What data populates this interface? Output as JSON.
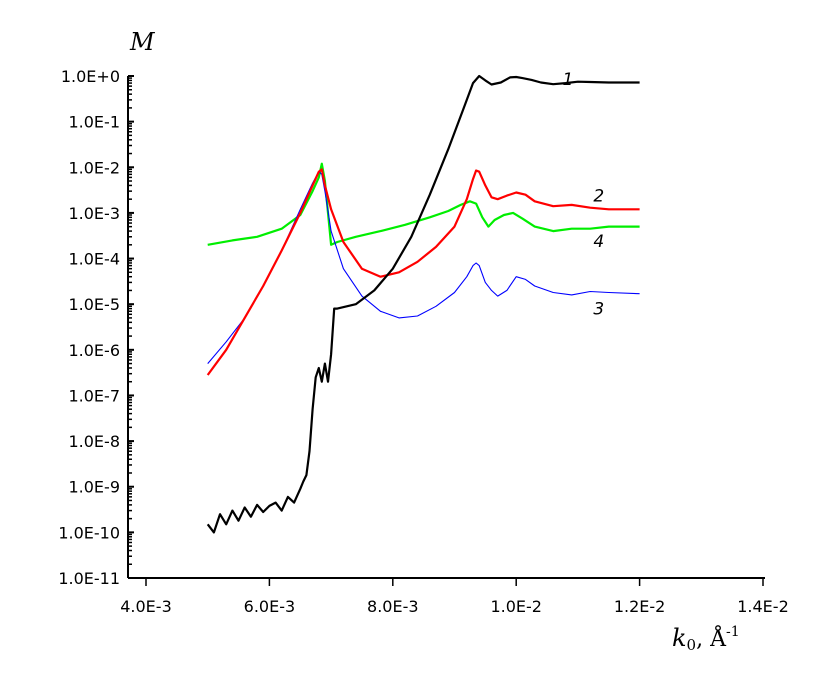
{
  "chart_data": {
    "type": "line",
    "title": "",
    "xlabel": "k0, Å-1",
    "xlabel_main": "k",
    "xlabel_sub": "0",
    "xlabel_unit": ", Å",
    "xlabel_sup": "-1",
    "ylabel": "M",
    "y_scale": "log",
    "xlim": [
      0.004,
      0.014
    ],
    "ylim": [
      1e-11,
      1
    ],
    "grid": false,
    "x_ticks": [
      0.004,
      0.006,
      0.008,
      0.01,
      0.012,
      0.014
    ],
    "x_tick_labels": [
      "4.0E-3",
      "6.0E-3",
      "8.0E-3",
      "1.0E-2",
      "1.2E-2",
      "1.4E-2"
    ],
    "y_ticks": [
      1,
      0.1,
      0.01,
      0.001,
      0.0001,
      1e-05,
      1e-06,
      1e-07,
      1e-08,
      1e-09,
      1e-10,
      1e-11
    ],
    "y_tick_labels": [
      "1.0E+0",
      "1.0E-1",
      "1.0E-2",
      "1.0E-3",
      "1.0E-4",
      "1.0E-5",
      "1.0E-6",
      "1.0E-7",
      "1.0E-8",
      "1.0E-9",
      "1.0E-10",
      "1.0E-11"
    ],
    "series": [
      {
        "name": "1",
        "color": "#000000",
        "label_at": [
          0.01075,
          0.63
        ],
        "x": [
          0.005,
          0.0051,
          0.0052,
          0.0053,
          0.0054,
          0.0055,
          0.0056,
          0.0057,
          0.0058,
          0.0059,
          0.006,
          0.0061,
          0.0062,
          0.0063,
          0.0064,
          0.0065,
          0.00655,
          0.0066,
          0.00665,
          0.0067,
          0.00675,
          0.0068,
          0.00685,
          0.0069,
          0.00695,
          0.007,
          0.00705,
          0.0071,
          0.0074,
          0.0077,
          0.008,
          0.0083,
          0.0086,
          0.0089,
          0.00915,
          0.0093,
          0.0094,
          0.0095,
          0.0096,
          0.00975,
          0.0099,
          0.01,
          0.0101,
          0.01025,
          0.0104,
          0.0106,
          0.0108,
          0.011,
          0.0112,
          0.0115,
          0.012
        ],
        "y": [
          1.5e-10,
          1e-10,
          2.5e-10,
          1.5e-10,
          3e-10,
          1.8e-10,
          3.5e-10,
          2.2e-10,
          4e-10,
          2.8e-10,
          3.8e-10,
          4.5e-10,
          3e-10,
          6e-10,
          4.5e-10,
          9e-10,
          1.3e-09,
          1.8e-09,
          6e-09,
          5e-08,
          2.5e-07,
          4e-07,
          2e-07,
          5e-07,
          2e-07,
          8e-07,
          8e-06,
          8e-06,
          1e-05,
          2e-05,
          6e-05,
          0.0003,
          0.0025,
          0.025,
          0.2,
          0.7,
          1.0,
          0.8,
          0.65,
          0.72,
          0.93,
          0.95,
          0.9,
          0.82,
          0.72,
          0.66,
          0.7,
          0.75,
          0.74,
          0.72,
          0.72
        ]
      },
      {
        "name": "2",
        "color": "#ff0000",
        "label_at": [
          0.01125,
          0.0018
        ],
        "x": [
          0.005,
          0.0053,
          0.0056,
          0.0059,
          0.0062,
          0.0065,
          0.0067,
          0.0068,
          0.00685,
          0.0069,
          0.007,
          0.0072,
          0.0075,
          0.0078,
          0.0081,
          0.0084,
          0.0087,
          0.009,
          0.0092,
          0.0093,
          0.00935,
          0.0094,
          0.0095,
          0.0096,
          0.0097,
          0.00985,
          0.01,
          0.01015,
          0.0103,
          0.0106,
          0.0109,
          0.0112,
          0.0115,
          0.012
        ],
        "y": [
          2.8e-07,
          1e-06,
          5e-06,
          2.5e-05,
          0.00015,
          0.001,
          0.004,
          0.008,
          0.009,
          0.004,
          0.0012,
          0.00023,
          6e-05,
          4e-05,
          5e-05,
          8.5e-05,
          0.00018,
          0.0005,
          0.002,
          0.0055,
          0.0085,
          0.008,
          0.004,
          0.0022,
          0.002,
          0.0024,
          0.0028,
          0.0025,
          0.0018,
          0.0014,
          0.0015,
          0.0013,
          0.0012,
          0.0012
        ]
      },
      {
        "name": "3",
        "color": "#0000ff",
        "label_at": [
          0.01125,
          6e-06
        ],
        "x": [
          0.005,
          0.0053,
          0.0056,
          0.0059,
          0.0062,
          0.0065,
          0.0067,
          0.0068,
          0.00685,
          0.0069,
          0.007,
          0.0072,
          0.0075,
          0.0078,
          0.0081,
          0.0084,
          0.0087,
          0.009,
          0.0092,
          0.0093,
          0.00935,
          0.0094,
          0.0095,
          0.0096,
          0.0097,
          0.00985,
          0.01,
          0.01015,
          0.0103,
          0.0106,
          0.0109,
          0.0112,
          0.0115,
          0.012
        ],
        "y": [
          5e-07,
          1.5e-06,
          5e-06,
          2.5e-05,
          0.00015,
          0.0012,
          0.0045,
          0.008,
          0.007,
          0.003,
          0.0004,
          6e-05,
          1.5e-05,
          7e-06,
          5e-06,
          5.5e-06,
          9e-06,
          1.8e-05,
          4e-05,
          7e-05,
          8e-05,
          7e-05,
          3e-05,
          2e-05,
          1.5e-05,
          2e-05,
          4e-05,
          3.5e-05,
          2.5e-05,
          1.8e-05,
          1.6e-05,
          1.9e-05,
          1.8e-05,
          1.7e-05
        ]
      },
      {
        "name": "4",
        "color": "#00ee00",
        "label_at": [
          0.01125,
          0.00018
        ],
        "x": [
          0.005,
          0.0054,
          0.0058,
          0.0062,
          0.0065,
          0.0067,
          0.0068,
          0.00685,
          0.0069,
          0.007,
          0.0071,
          0.0074,
          0.0078,
          0.0082,
          0.0086,
          0.0089,
          0.0091,
          0.00925,
          0.00935,
          0.00945,
          0.00955,
          0.00965,
          0.0098,
          0.00995,
          0.0101,
          0.0103,
          0.0106,
          0.0109,
          0.0112,
          0.0115,
          0.012
        ],
        "y": [
          0.0002,
          0.00025,
          0.0003,
          0.00045,
          0.0009,
          0.003,
          0.006,
          0.012,
          0.005,
          0.0002,
          0.00023,
          0.0003,
          0.0004,
          0.00055,
          0.0008,
          0.0011,
          0.0015,
          0.0018,
          0.0016,
          0.0008,
          0.0005,
          0.0007,
          0.0009,
          0.001,
          0.00075,
          0.0005,
          0.0004,
          0.00045,
          0.00045,
          0.0005,
          0.0005
        ]
      }
    ]
  }
}
